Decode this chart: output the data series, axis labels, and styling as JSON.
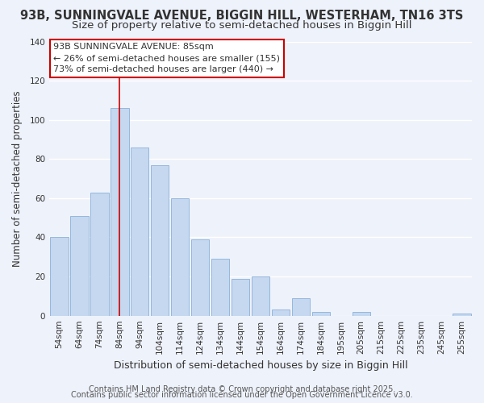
{
  "title": "93B, SUNNINGVALE AVENUE, BIGGIN HILL, WESTERHAM, TN16 3TS",
  "subtitle": "Size of property relative to semi-detached houses in Biggin Hill",
  "xlabel": "Distribution of semi-detached houses by size in Biggin Hill",
  "ylabel": "Number of semi-detached properties",
  "bar_color": "#c5d8f0",
  "bar_edge_color": "#8ab0d8",
  "categories": [
    "54sqm",
    "64sqm",
    "74sqm",
    "84sqm",
    "94sqm",
    "104sqm",
    "114sqm",
    "124sqm",
    "134sqm",
    "144sqm",
    "154sqm",
    "164sqm",
    "174sqm",
    "184sqm",
    "195sqm",
    "205sqm",
    "215sqm",
    "225sqm",
    "235sqm",
    "245sqm",
    "255sqm"
  ],
  "values": [
    40,
    51,
    63,
    106,
    86,
    77,
    60,
    39,
    29,
    19,
    20,
    3,
    9,
    2,
    0,
    2,
    0,
    0,
    0,
    0,
    1
  ],
  "ylim": [
    0,
    140
  ],
  "yticks": [
    0,
    20,
    40,
    60,
    80,
    100,
    120,
    140
  ],
  "annotation_title": "93B SUNNINGVALE AVENUE: 85sqm",
  "annotation_line2": "← 26% of semi-detached houses are smaller (155)",
  "annotation_line3": "73% of semi-detached houses are larger (440) →",
  "annotation_box_facecolor": "#ffffff",
  "annotation_box_edgecolor": "#cc0000",
  "highlight_index": 3,
  "vline_color": "#cc0000",
  "footer1": "Contains HM Land Registry data © Crown copyright and database right 2025.",
  "footer2": "Contains public sector information licensed under the Open Government Licence v3.0.",
  "background_color": "#eef2fb",
  "grid_color": "#ffffff",
  "title_fontsize": 10.5,
  "subtitle_fontsize": 9.5,
  "xlabel_fontsize": 9,
  "ylabel_fontsize": 8.5,
  "tick_fontsize": 7.5,
  "annotation_fontsize": 8,
  "footer_fontsize": 7
}
